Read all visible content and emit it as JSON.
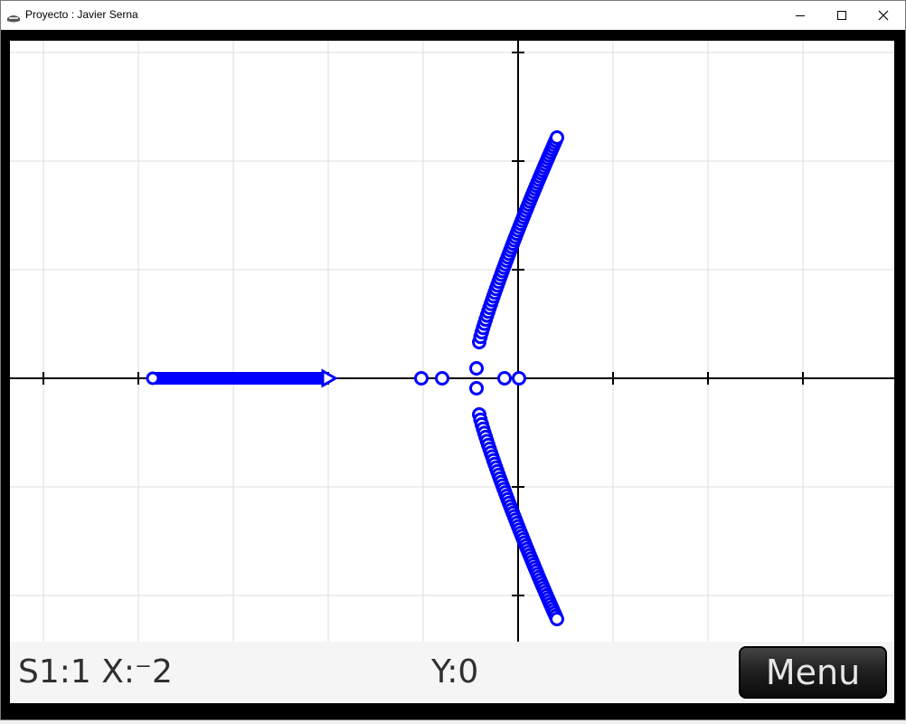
{
  "window": {
    "title": "Proyecto : Javier Serna",
    "icon": "calculator-icon",
    "controls": [
      "minimize-icon",
      "maximize-icon",
      "close-icon"
    ]
  },
  "colors": {
    "plot": "#0000ff",
    "axes": "#000000",
    "grid": "#dcdcdc",
    "screen_bg": "#ffffff",
    "bezel": "#000000"
  },
  "status": {
    "x_readout": "S1:1 X:⁻2",
    "y_readout": "Y:0",
    "menu_label": "Menu"
  }
}
